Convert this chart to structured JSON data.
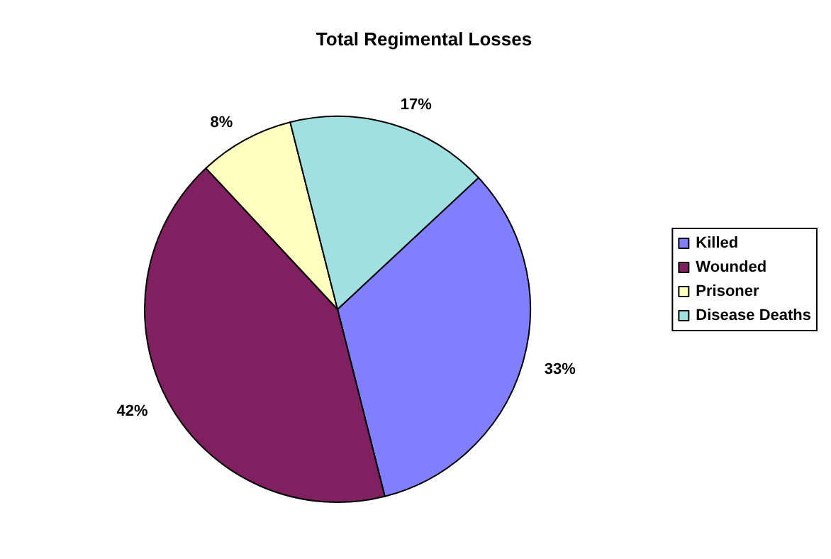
{
  "chart_data": {
    "type": "pie",
    "title": "Total Regimental Losses",
    "categories": [
      "Killed",
      "Wounded",
      "Prisoner",
      "Disease Deaths"
    ],
    "values": [
      33,
      42,
      8,
      17
    ],
    "colors": [
      "#8080ff",
      "#802060",
      "#ffffc0",
      "#a0e0e0"
    ],
    "value_labels": [
      "33%",
      "42%",
      "8%",
      "17%"
    ],
    "legend": "right"
  }
}
